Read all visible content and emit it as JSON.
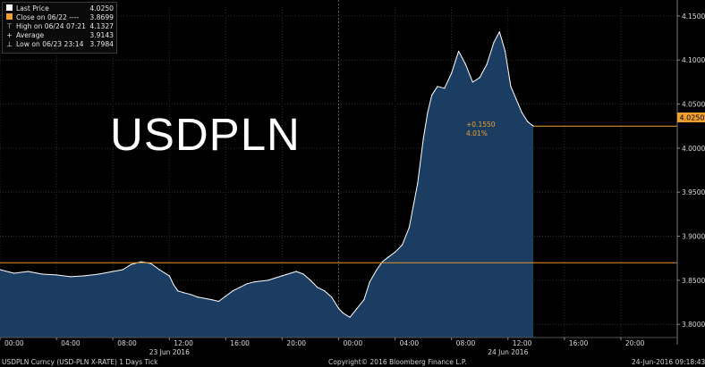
{
  "title_overlay": "USDPLN",
  "legend": [
    {
      "label": "Last Price",
      "value": "4.0250",
      "symbol": "white-square"
    },
    {
      "label": "Close on 06/22 ----",
      "value": "3.8699",
      "symbol": "orange-square"
    },
    {
      "label": "High on 06/24 07:21",
      "value": "4.1327",
      "symbol": "high-marker"
    },
    {
      "label": "Average",
      "value": "3.9143",
      "symbol": "plus-marker"
    },
    {
      "label": "Low on 06/23 23:14",
      "value": "3.7984",
      "symbol": "low-marker"
    }
  ],
  "last_price_tag": "4.0250",
  "change_annotation": {
    "abs": "+0.1550",
    "pct": "4.01%"
  },
  "footer": {
    "left": "USDPLN Curncy (USD-PLN X-RATE) 1 Days Tick",
    "center": "Copyright© 2016 Bloomberg Finance L.P.",
    "right": "24-Jun-2016 09:18:43"
  },
  "colors": {
    "background": "#000000",
    "line": "#ffffff",
    "area": "#1c3d62",
    "close_line": "#e09a2a",
    "last_price": "#f0a030",
    "grid": "#2f2f2f"
  },
  "chart_data": {
    "type": "area",
    "x_unit": "hours from 06/23 00:00",
    "y_tick_labels": [
      "4.1500",
      "4.1000",
      "4.0500",
      "4.0000",
      "3.9500",
      "3.9000",
      "3.8500",
      "3.8000"
    ],
    "y_ticks": [
      4.15,
      4.1,
      4.05,
      4.0,
      3.95,
      3.9,
      3.85,
      3.8
    ],
    "ylim": [
      3.785,
      4.16
    ],
    "xlim": [
      0,
      48
    ],
    "x_ticks": [
      0,
      4,
      8,
      12,
      16,
      20,
      24,
      28,
      32,
      36,
      40,
      44
    ],
    "x_tick_labels": [
      "00:00",
      "04:00",
      "08:00",
      "12:00",
      "16:00",
      "20:00",
      "00:00",
      "04:00",
      "08:00",
      "12:00",
      "16:00",
      "20:00"
    ],
    "date_labels": [
      {
        "x": 12,
        "label": "23 Jun 2016"
      },
      {
        "x": 36,
        "label": "24 Jun 2016"
      }
    ],
    "day_divider_x": 24,
    "grid": true,
    "close_level": 3.8699,
    "last_price": 4.025,
    "series": [
      {
        "values": [
          [
            0,
            3.862
          ],
          [
            1,
            3.858
          ],
          [
            2,
            3.86
          ],
          [
            3,
            3.857
          ],
          [
            4,
            3.856
          ],
          [
            5,
            3.854
          ],
          [
            6,
            3.855
          ],
          [
            7,
            3.857
          ],
          [
            8,
            3.86
          ],
          [
            8.7,
            3.862
          ],
          [
            9.3,
            3.868
          ],
          [
            10,
            3.871
          ],
          [
            10.7,
            3.869
          ],
          [
            11.3,
            3.862
          ],
          [
            12,
            3.855
          ],
          [
            12.3,
            3.845
          ],
          [
            12.6,
            3.838
          ],
          [
            13,
            3.836
          ],
          [
            13.5,
            3.834
          ],
          [
            14,
            3.831
          ],
          [
            15,
            3.828
          ],
          [
            15.5,
            3.826
          ],
          [
            16,
            3.832
          ],
          [
            16.5,
            3.838
          ],
          [
            17,
            3.842
          ],
          [
            17.5,
            3.846
          ],
          [
            18,
            3.848
          ],
          [
            19,
            3.85
          ],
          [
            20,
            3.855
          ],
          [
            21,
            3.86
          ],
          [
            21.5,
            3.857
          ],
          [
            22,
            3.85
          ],
          [
            22.5,
            3.842
          ],
          [
            23,
            3.838
          ],
          [
            23.5,
            3.831
          ],
          [
            24,
            3.818
          ],
          [
            24.3,
            3.813
          ],
          [
            24.8,
            3.808
          ],
          [
            25.3,
            3.818
          ],
          [
            25.8,
            3.828
          ],
          [
            26.2,
            3.848
          ],
          [
            26.7,
            3.862
          ],
          [
            27.1,
            3.871
          ],
          [
            27.5,
            3.876
          ],
          [
            28,
            3.882
          ],
          [
            28.5,
            3.89
          ],
          [
            29,
            3.91
          ],
          [
            29.3,
            3.935
          ],
          [
            29.6,
            3.96
          ],
          [
            30,
            4.01
          ],
          [
            30.3,
            4.04
          ],
          [
            30.6,
            4.06
          ],
          [
            31,
            4.07
          ],
          [
            31.5,
            4.068
          ],
          [
            32,
            4.085
          ],
          [
            32.5,
            4.11
          ],
          [
            33,
            4.095
          ],
          [
            33.5,
            4.075
          ],
          [
            34,
            4.08
          ],
          [
            34.5,
            4.095
          ],
          [
            35,
            4.12
          ],
          [
            35.4,
            4.132
          ],
          [
            35.8,
            4.11
          ],
          [
            36.2,
            4.07
          ],
          [
            36.6,
            4.055
          ],
          [
            37,
            4.04
          ],
          [
            37.4,
            4.03
          ],
          [
            37.8,
            4.025
          ]
        ]
      }
    ]
  }
}
